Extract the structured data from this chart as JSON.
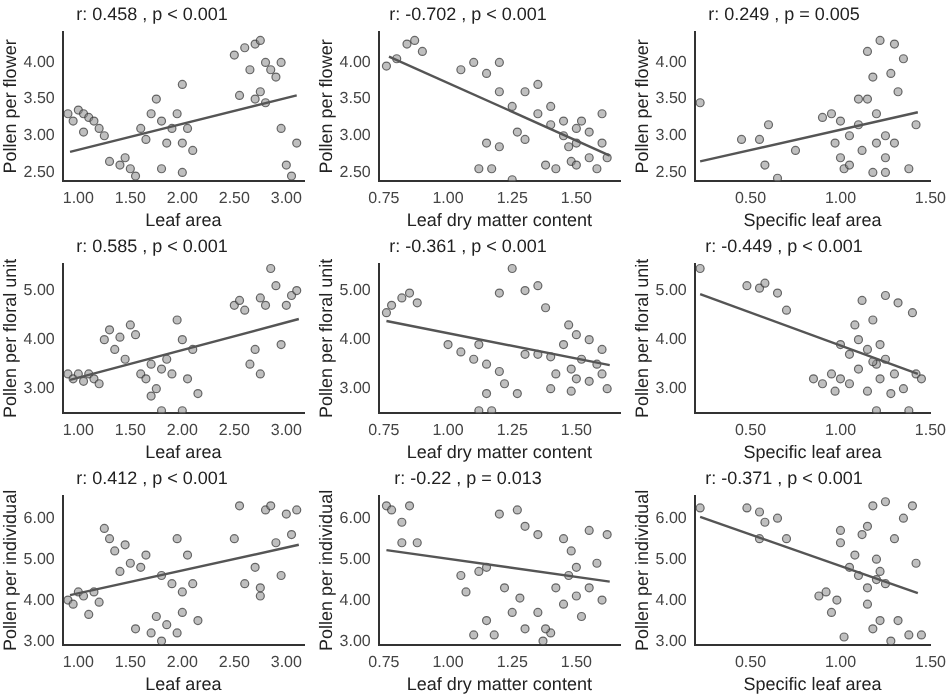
{
  "chart_data": [
    {
      "type": "scatter",
      "title": "r: 0.458 , p < 0.001",
      "xlabel": "Leaf area",
      "ylabel": "Pollen per flower",
      "grid": false,
      "xlim": [
        0.85,
        3.17
      ],
      "ylim": [
        2.38,
        4.42
      ],
      "xticks": [
        {
          "value": 1,
          "label": "1.00"
        },
        {
          "value": 1.5,
          "label": "1.50"
        },
        {
          "value": 2,
          "label": "2.00"
        },
        {
          "value": 2.5,
          "label": "2.50"
        },
        {
          "value": 3,
          "label": "3.00"
        }
      ],
      "yticks": [
        {
          "value": 2.5,
          "label": "2.50"
        },
        {
          "value": 3,
          "label": "3.00"
        },
        {
          "value": 3.5,
          "label": "3.50"
        },
        {
          "value": 4,
          "label": "4.00"
        }
      ],
      "series": [
        {
          "type": "scatter",
          "marker": "circle",
          "color": "#8a8a8a",
          "x": [
            0.9,
            0.95,
            1.0,
            1.05,
            1.1,
            1.15,
            1.2,
            1.25,
            1.05,
            1.3,
            1.4,
            1.5,
            1.55,
            1.45,
            1.6,
            1.7,
            1.75,
            1.8,
            1.85,
            1.9,
            1.95,
            2.0,
            2.0,
            2.05,
            2.1,
            1.8,
            2.0,
            1.65,
            2.5,
            2.6,
            2.7,
            2.75,
            2.65,
            2.8,
            2.85,
            2.9,
            2.75,
            2.8,
            2.95,
            3.0,
            3.05,
            3.1,
            2.95,
            2.55,
            2.7
          ],
          "values": [
            3.3,
            3.2,
            3.35,
            3.3,
            3.25,
            3.2,
            3.1,
            3.0,
            3.05,
            2.65,
            2.6,
            2.55,
            2.45,
            2.7,
            3.1,
            3.3,
            3.5,
            3.2,
            2.9,
            3.1,
            3.3,
            3.7,
            2.9,
            3.1,
            2.8,
            2.55,
            2.5,
            2.95,
            4.1,
            4.2,
            4.25,
            4.3,
            3.9,
            4.0,
            3.9,
            3.8,
            3.6,
            3.45,
            3.1,
            2.6,
            2.45,
            2.9,
            4.0,
            3.55,
            3.5
          ]
        },
        {
          "type": "line",
          "color": "#555555",
          "x": [
            0.92,
            3.1
          ],
          "values": [
            2.78,
            3.55
          ]
        }
      ]
    },
    {
      "type": "scatter",
      "title": "r: -0.702 , p < 0.001",
      "xlabel": "Leaf dry matter content",
      "ylabel": "Pollen per flower",
      "grid": false,
      "xlim": [
        0.73,
        1.67
      ],
      "ylim": [
        2.38,
        4.42
      ],
      "xticks": [
        {
          "value": 0.75,
          "label": "0.75"
        },
        {
          "value": 1,
          "label": "1.00"
        },
        {
          "value": 1.25,
          "label": "1.25"
        },
        {
          "value": 1.5,
          "label": "1.50"
        }
      ],
      "yticks": [
        {
          "value": 2.5,
          "label": "2.50"
        },
        {
          "value": 3,
          "label": "3.00"
        },
        {
          "value": 3.5,
          "label": "3.50"
        },
        {
          "value": 4,
          "label": "4.00"
        }
      ],
      "series": [
        {
          "type": "scatter",
          "marker": "circle",
          "color": "#8a8a8a",
          "x": [
            0.76,
            0.8,
            0.84,
            0.87,
            0.9,
            1.05,
            1.1,
            1.15,
            1.2,
            1.2,
            1.25,
            1.15,
            1.12,
            1.17,
            1.2,
            1.25,
            1.27,
            1.3,
            1.35,
            1.35,
            1.4,
            1.38,
            1.42,
            1.45,
            1.47,
            1.48,
            1.5,
            1.5,
            1.52,
            1.55,
            1.55,
            1.58,
            1.6,
            1.62,
            1.45,
            1.5,
            1.3,
            1.4,
            1.6
          ],
          "values": [
            3.95,
            4.05,
            4.25,
            4.3,
            4.15,
            3.9,
            4.0,
            3.85,
            3.6,
            4.0,
            3.4,
            2.9,
            2.55,
            2.55,
            2.85,
            2.4,
            3.05,
            2.95,
            3.7,
            3.3,
            3.4,
            2.6,
            2.55,
            3.0,
            2.85,
            2.65,
            3.1,
            2.9,
            3.2,
            3.05,
            2.7,
            2.55,
            3.3,
            2.7,
            3.2,
            2.6,
            3.6,
            3.15,
            2.9
          ]
        },
        {
          "type": "line",
          "color": "#555555",
          "x": [
            0.77,
            1.63
          ],
          "values": [
            4.08,
            2.73
          ]
        }
      ]
    },
    {
      "type": "scatter",
      "title": "r: 0.249 , p = 0.005",
      "xlabel": "Specific leaf area",
      "ylabel": "Pollen per flower",
      "grid": false,
      "xlim": [
        0.19,
        1.5
      ],
      "ylim": [
        2.38,
        4.42
      ],
      "xticks": [
        {
          "value": 0.5,
          "label": "0.50"
        },
        {
          "value": 1,
          "label": "1.00"
        },
        {
          "value": 1.5,
          "label": "1.50"
        }
      ],
      "yticks": [
        {
          "value": 2.5,
          "label": "2.50"
        },
        {
          "value": 3,
          "label": "3.00"
        },
        {
          "value": 3.5,
          "label": "3.50"
        },
        {
          "value": 4,
          "label": "4.00"
        }
      ],
      "series": [
        {
          "type": "scatter",
          "marker": "circle",
          "color": "#8a8a8a",
          "x": [
            0.22,
            0.45,
            0.55,
            0.6,
            0.58,
            0.65,
            0.75,
            0.9,
            0.95,
            1.0,
            1.0,
            1.02,
            1.05,
            1.05,
            1.1,
            1.12,
            1.15,
            1.15,
            1.18,
            1.2,
            1.2,
            1.22,
            1.25,
            1.25,
            1.28,
            1.3,
            1.3,
            1.32,
            1.35,
            1.38,
            1.42,
            1.18,
            1.1,
            1.25,
            0.97
          ],
          "values": [
            3.45,
            2.95,
            2.95,
            3.15,
            2.6,
            2.42,
            2.8,
            3.25,
            3.3,
            3.2,
            2.7,
            2.55,
            2.6,
            3.0,
            3.5,
            2.8,
            4.15,
            3.5,
            3.8,
            3.3,
            2.9,
            4.3,
            3.0,
            2.5,
            3.85,
            4.25,
            2.9,
            3.6,
            4.05,
            2.55,
            3.15,
            2.5,
            3.15,
            2.7,
            2.9
          ]
        },
        {
          "type": "line",
          "color": "#555555",
          "x": [
            0.22,
            1.43
          ],
          "values": [
            2.65,
            3.32
          ]
        }
      ]
    },
    {
      "type": "scatter",
      "title": "r: 0.585 , p < 0.001",
      "xlabel": "Leaf area",
      "ylabel": "Pollen per floral unit",
      "grid": false,
      "xlim": [
        0.85,
        3.17
      ],
      "ylim": [
        2.5,
        5.55
      ],
      "xticks": [
        {
          "value": 1,
          "label": "1.00"
        },
        {
          "value": 1.5,
          "label": "1.50"
        },
        {
          "value": 2,
          "label": "2.00"
        },
        {
          "value": 2.5,
          "label": "2.50"
        },
        {
          "value": 3,
          "label": "3.00"
        }
      ],
      "yticks": [
        {
          "value": 3,
          "label": "3.00"
        },
        {
          "value": 4,
          "label": "4.00"
        },
        {
          "value": 5,
          "label": "5.00"
        }
      ],
      "series": [
        {
          "type": "scatter",
          "marker": "circle",
          "color": "#8a8a8a",
          "x": [
            0.9,
            0.95,
            1.0,
            1.05,
            1.1,
            1.15,
            1.2,
            1.25,
            1.3,
            1.35,
            1.4,
            1.45,
            1.5,
            1.55,
            1.6,
            1.65,
            1.7,
            1.75,
            1.8,
            1.8,
            1.85,
            1.9,
            1.95,
            2.0,
            2.0,
            2.05,
            2.1,
            2.15,
            2.5,
            2.55,
            2.6,
            2.65,
            2.7,
            2.75,
            2.75,
            2.8,
            2.85,
            2.9,
            2.95,
            3.0,
            3.05,
            3.1,
            1.7
          ],
          "values": [
            3.3,
            3.2,
            3.3,
            3.15,
            3.3,
            3.2,
            3.1,
            4.0,
            4.2,
            3.8,
            4.05,
            3.6,
            4.3,
            4.1,
            3.3,
            3.2,
            3.5,
            3.0,
            2.55,
            3.4,
            3.6,
            3.3,
            4.4,
            4.0,
            2.55,
            3.2,
            3.8,
            2.9,
            4.7,
            4.8,
            4.6,
            3.5,
            3.8,
            3.3,
            4.85,
            4.7,
            5.45,
            5.1,
            3.9,
            4.7,
            4.9,
            5.0,
            2.85
          ]
        },
        {
          "type": "line",
          "color": "#555555",
          "x": [
            0.92,
            3.12
          ],
          "values": [
            3.18,
            4.42
          ]
        }
      ]
    },
    {
      "type": "scatter",
      "title": "r: -0.361 , p < 0.001",
      "xlabel": "Leaf dry matter content",
      "ylabel": "Pollen per floral unit",
      "grid": false,
      "xlim": [
        0.73,
        1.67
      ],
      "ylim": [
        2.5,
        5.55
      ],
      "xticks": [
        {
          "value": 0.75,
          "label": "0.75"
        },
        {
          "value": 1,
          "label": "1.00"
        },
        {
          "value": 1.25,
          "label": "1.25"
        },
        {
          "value": 1.5,
          "label": "1.50"
        }
      ],
      "yticks": [
        {
          "value": 3,
          "label": "3.00"
        },
        {
          "value": 4,
          "label": "4.00"
        },
        {
          "value": 5,
          "label": "5.00"
        }
      ],
      "series": [
        {
          "type": "scatter",
          "marker": "circle",
          "color": "#8a8a8a",
          "x": [
            0.76,
            0.78,
            0.82,
            0.85,
            0.88,
            1.0,
            1.05,
            1.1,
            1.12,
            1.15,
            1.15,
            1.12,
            1.17,
            1.2,
            1.2,
            1.22,
            1.25,
            1.27,
            1.3,
            1.3,
            1.35,
            1.35,
            1.38,
            1.4,
            1.42,
            1.45,
            1.47,
            1.48,
            1.5,
            1.5,
            1.52,
            1.55,
            1.55,
            1.58,
            1.6,
            1.6,
            1.62,
            1.48,
            1.4
          ],
          "values": [
            4.55,
            4.7,
            4.85,
            4.95,
            4.75,
            3.9,
            3.75,
            3.6,
            3.9,
            3.5,
            2.9,
            2.55,
            2.55,
            3.35,
            4.95,
            3.1,
            5.45,
            2.9,
            3.7,
            5.0,
            5.1,
            3.7,
            4.65,
            3.0,
            3.3,
            3.9,
            4.3,
            3.4,
            4.1,
            3.2,
            3.6,
            3.15,
            4.0,
            3.5,
            3.3,
            3.8,
            3.0,
            2.95,
            3.65
          ]
        },
        {
          "type": "line",
          "color": "#555555",
          "x": [
            0.76,
            1.63
          ],
          "values": [
            4.38,
            3.48
          ]
        }
      ]
    },
    {
      "type": "scatter",
      "title": "r: -0.449 , p < 0.001",
      "xlabel": "Specific leaf area",
      "ylabel": "Pollen per floral unit",
      "grid": false,
      "xlim": [
        0.19,
        1.5
      ],
      "ylim": [
        2.5,
        5.55
      ],
      "xticks": [
        {
          "value": 0.5,
          "label": "0.50"
        },
        {
          "value": 1,
          "label": "1.00"
        },
        {
          "value": 1.5,
          "label": "1.50"
        }
      ],
      "yticks": [
        {
          "value": 3,
          "label": "3.00"
        },
        {
          "value": 4,
          "label": "4.00"
        },
        {
          "value": 5,
          "label": "5.00"
        }
      ],
      "series": [
        {
          "type": "scatter",
          "marker": "circle",
          "color": "#8a8a8a",
          "x": [
            0.22,
            0.48,
            0.55,
            0.58,
            0.65,
            0.7,
            0.85,
            0.9,
            0.95,
            0.97,
            1.0,
            1.0,
            1.05,
            1.08,
            1.1,
            1.1,
            1.12,
            1.15,
            1.15,
            1.18,
            1.2,
            1.2,
            1.22,
            1.25,
            1.25,
            1.28,
            1.3,
            1.32,
            1.35,
            1.38,
            1.4,
            1.42,
            1.45,
            1.18,
            1.22,
            1.05
          ],
          "values": [
            5.45,
            5.1,
            5.05,
            5.15,
            4.95,
            4.6,
            3.2,
            3.1,
            3.3,
            2.95,
            3.2,
            3.9,
            3.7,
            4.3,
            3.4,
            4.0,
            4.8,
            3.8,
            2.95,
            4.4,
            3.5,
            2.55,
            3.2,
            4.9,
            3.6,
            2.9,
            3.3,
            4.75,
            3.0,
            2.55,
            4.55,
            3.3,
            3.2,
            3.55,
            3.9,
            3.1
          ]
        },
        {
          "type": "line",
          "color": "#555555",
          "x": [
            0.22,
            1.43
          ],
          "values": [
            4.93,
            3.3
          ]
        }
      ]
    },
    {
      "type": "scatter",
      "title": "r: 0.412 , p < 0.001",
      "xlabel": "Leaf area",
      "ylabel": "Pollen per individual",
      "grid": false,
      "xlim": [
        0.85,
        3.17
      ],
      "ylim": [
        2.9,
        6.55
      ],
      "xticks": [
        {
          "value": 1,
          "label": "1.00"
        },
        {
          "value": 1.5,
          "label": "1.50"
        },
        {
          "value": 2,
          "label": "2.00"
        },
        {
          "value": 2.5,
          "label": "2.50"
        },
        {
          "value": 3,
          "label": "3.00"
        }
      ],
      "yticks": [
        {
          "value": 3,
          "label": "3.00"
        },
        {
          "value": 4,
          "label": "4.00"
        },
        {
          "value": 5,
          "label": "5.00"
        },
        {
          "value": 6,
          "label": "6.00"
        }
      ],
      "series": [
        {
          "type": "scatter",
          "marker": "circle",
          "color": "#8a8a8a",
          "x": [
            0.9,
            0.95,
            1.0,
            1.05,
            1.1,
            1.15,
            1.2,
            1.25,
            1.3,
            1.35,
            1.4,
            1.45,
            1.5,
            1.55,
            1.6,
            1.65,
            1.7,
            1.75,
            1.8,
            1.8,
            1.85,
            1.9,
            1.95,
            2.0,
            2.0,
            2.05,
            2.1,
            2.15,
            2.5,
            2.55,
            2.6,
            2.7,
            2.75,
            2.75,
            2.8,
            2.85,
            2.9,
            2.95,
            3.0,
            3.05,
            3.1,
            1.95
          ],
          "values": [
            4.0,
            3.9,
            4.2,
            4.1,
            3.65,
            4.2,
            3.95,
            5.75,
            5.5,
            5.2,
            4.7,
            5.35,
            4.9,
            3.3,
            4.8,
            5.1,
            3.2,
            3.6,
            3.0,
            4.6,
            3.4,
            4.4,
            5.5,
            3.7,
            4.2,
            5.1,
            4.4,
            3.5,
            5.5,
            6.3,
            4.4,
            4.8,
            4.1,
            4.3,
            6.2,
            6.3,
            5.4,
            4.6,
            6.1,
            5.6,
            6.2,
            3.2
          ]
        },
        {
          "type": "line",
          "color": "#555555",
          "x": [
            0.92,
            3.12
          ],
          "values": [
            4.12,
            5.35
          ]
        }
      ]
    },
    {
      "type": "scatter",
      "title": "r: -0.22 , p = 0.013",
      "xlabel": "Leaf dry matter content",
      "ylabel": "Pollen per individual",
      "grid": false,
      "xlim": [
        0.73,
        1.67
      ],
      "ylim": [
        2.9,
        6.55
      ],
      "xticks": [
        {
          "value": 0.75,
          "label": "0.75"
        },
        {
          "value": 1,
          "label": "1.00"
        },
        {
          "value": 1.25,
          "label": "1.25"
        },
        {
          "value": 1.5,
          "label": "1.50"
        }
      ],
      "yticks": [
        {
          "value": 3,
          "label": "3.00"
        },
        {
          "value": 4,
          "label": "4.00"
        },
        {
          "value": 5,
          "label": "5.00"
        },
        {
          "value": 6,
          "label": "6.00"
        }
      ],
      "series": [
        {
          "type": "scatter",
          "marker": "circle",
          "color": "#8a8a8a",
          "x": [
            0.76,
            0.78,
            0.82,
            0.85,
            0.88,
            0.82,
            1.05,
            1.07,
            1.1,
            1.12,
            1.15,
            1.15,
            1.18,
            1.2,
            1.22,
            1.25,
            1.27,
            1.3,
            1.3,
            1.35,
            1.35,
            1.37,
            1.4,
            1.42,
            1.45,
            1.47,
            1.48,
            1.5,
            1.5,
            1.52,
            1.55,
            1.55,
            1.58,
            1.6,
            1.62,
            1.45,
            1.38,
            1.28
          ],
          "values": [
            6.3,
            6.2,
            5.9,
            6.3,
            5.4,
            5.4,
            4.6,
            4.2,
            3.15,
            4.7,
            3.5,
            4.8,
            3.15,
            6.1,
            4.3,
            3.7,
            6.2,
            5.8,
            3.3,
            3.7,
            5.6,
            3.0,
            3.2,
            4.3,
            5.5,
            4.6,
            5.2,
            4.1,
            4.8,
            3.6,
            5.7,
            4.3,
            4.9,
            4.0,
            5.6,
            3.9,
            3.3,
            4.05
          ]
        },
        {
          "type": "line",
          "color": "#555555",
          "x": [
            0.76,
            1.63
          ],
          "values": [
            5.22,
            4.45
          ]
        }
      ]
    },
    {
      "type": "scatter",
      "title": "r: -0.371 , p < 0.001",
      "xlabel": "Specific leaf area",
      "ylabel": "Pollen per individual",
      "grid": false,
      "xlim": [
        0.19,
        1.5
      ],
      "ylim": [
        2.9,
        6.55
      ],
      "xticks": [
        {
          "value": 0.5,
          "label": "0.50"
        },
        {
          "value": 1,
          "label": "1.00"
        },
        {
          "value": 1.5,
          "label": "1.50"
        }
      ],
      "yticks": [
        {
          "value": 3,
          "label": "3.00"
        },
        {
          "value": 4,
          "label": "4.00"
        },
        {
          "value": 5,
          "label": "5.00"
        },
        {
          "value": 6,
          "label": "6.00"
        }
      ],
      "series": [
        {
          "type": "scatter",
          "marker": "circle",
          "color": "#8a8a8a",
          "x": [
            0.22,
            0.48,
            0.55,
            0.58,
            0.65,
            0.7,
            0.55,
            0.88,
            0.92,
            0.95,
            0.98,
            1.0,
            1.0,
            1.02,
            1.05,
            1.08,
            1.1,
            1.12,
            1.15,
            1.15,
            1.18,
            1.18,
            1.2,
            1.2,
            1.22,
            1.25,
            1.25,
            1.28,
            1.3,
            1.32,
            1.35,
            1.38,
            1.4,
            1.42,
            1.45,
            1.15,
            1.22
          ],
          "values": [
            6.25,
            6.25,
            6.15,
            5.9,
            6.0,
            5.5,
            5.5,
            4.1,
            4.2,
            3.7,
            4.0,
            5.4,
            5.7,
            3.1,
            4.8,
            5.1,
            4.6,
            5.6,
            3.9,
            4.3,
            6.3,
            3.3,
            5.0,
            4.5,
            3.5,
            6.4,
            4.4,
            3.0,
            5.5,
            3.5,
            6.0,
            3.15,
            6.3,
            4.9,
            3.15,
            5.8,
            4.7
          ]
        },
        {
          "type": "line",
          "color": "#555555",
          "x": [
            0.22,
            1.43
          ],
          "values": [
            6.03,
            4.17
          ]
        }
      ]
    }
  ]
}
